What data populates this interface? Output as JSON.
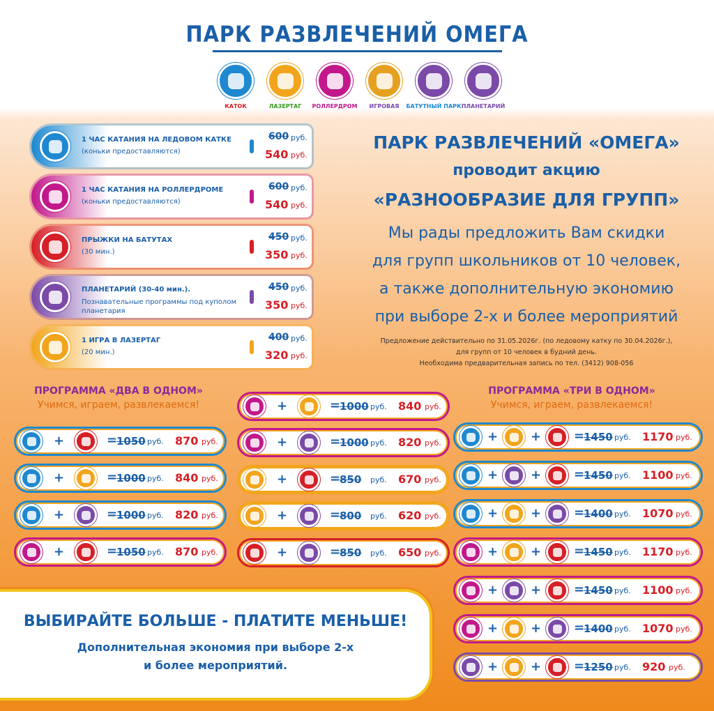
{
  "header": {
    "title": "ПАРК РАЗВЛЕЧЕНИЙ ОМЕГА",
    "icons": [
      "КАТОК",
      "ЛАЗЕРТАГ",
      "РОЛЛЕРДРОМ",
      "ИГРОВАЯ",
      "БАТУТНЫЙ ПАРК",
      "ПЛАНЕТАРИЙ"
    ]
  },
  "currency": "руб.",
  "plus": "+",
  "equals": "=",
  "offers": [
    {
      "title": "1 ЧАС КАТАНИЯ НА ЛЕДОВОМ КАТКЕ",
      "note": "(коньки предоставляются)",
      "old_price": 600,
      "new_price": 540
    },
    {
      "title": "1 ЧАС КАТАНИЯ НА РОЛЛЕРДРОМЕ",
      "note": "(коньки предоставляются)",
      "old_price": 600,
      "new_price": 540
    },
    {
      "title": "ПРЫЖКИ НА БАТУТАХ",
      "note": "(30 мин.)",
      "old_price": 450,
      "new_price": 350
    },
    {
      "title": "ПЛАНЕТАРИЙ (30-40 мин.).",
      "note": "Познавательные программы под куполом планетария",
      "old_price": 450,
      "new_price": 350
    },
    {
      "title": "1 ИГРА В ЛАЗЕРТАГ",
      "note": "(20 мин.)",
      "old_price": 400,
      "new_price": 320
    }
  ],
  "promo": {
    "heading": [
      "ПАРК РАЗВЛЕЧЕНИЙ «ОМЕГА»",
      "проводит акцию",
      "«РАЗНООБРАЗИЕ ДЛЯ ГРУПП»"
    ],
    "body": [
      "Мы рады предложить Вам скидки",
      "для групп школьников от 10 человек,",
      "а также дополнительную экономию",
      "при выборе 2-х и более мероприятий"
    ],
    "note": [
      "Предложение действительно по 31.05.2026г. (по ледовому катку по 30.04.2026г.),",
      "для групп от 10 человек в будний день.",
      "Необходима предварительная запись по тел. (3412) 908-056"
    ]
  },
  "programs": [
    {
      "title": "ПРОГРАММА «ДВА В ОДНОМ»",
      "subtitle": "Учимся, играем, развлекаемся!"
    },
    {
      "title": "ПРОГРАММА «ТРИ В ОДНОМ»",
      "subtitle": "Учимся, играем, развлекаемся!"
    }
  ],
  "combos_two": [
    {
      "old_price": 1050,
      "new_price": 870
    },
    {
      "old_price": 1000,
      "new_price": 840
    },
    {
      "old_price": 1000,
      "new_price": 820
    },
    {
      "old_price": 1050,
      "new_price": 870
    },
    {
      "old_price": 1000,
      "new_price": 840
    },
    {
      "old_price": 1000,
      "new_price": 820
    },
    {
      "old_price": 850,
      "new_price": 670
    },
    {
      "old_price": 800,
      "new_price": 620
    },
    {
      "old_price": 850,
      "new_price": 650
    }
  ],
  "combos_three": [
    {
      "old_price": 1450,
      "new_price": 1170
    },
    {
      "old_price": 1450,
      "new_price": 1100
    },
    {
      "old_price": 1400,
      "new_price": 1070
    },
    {
      "old_price": 1450,
      "new_price": 1170
    },
    {
      "old_price": 1450,
      "new_price": 1100
    },
    {
      "old_price": 1400,
      "new_price": 1070
    },
    {
      "old_price": 1250,
      "new_price": 920
    }
  ],
  "footer": {
    "slogan": "ВЫБИРАЙТЕ БОЛЬШЕ - ПЛАТИТЕ МЕНЬШЕ!",
    "lines": [
      "Дополнительная экономия при выборе 2-х",
      "и более мероприятий."
    ]
  }
}
